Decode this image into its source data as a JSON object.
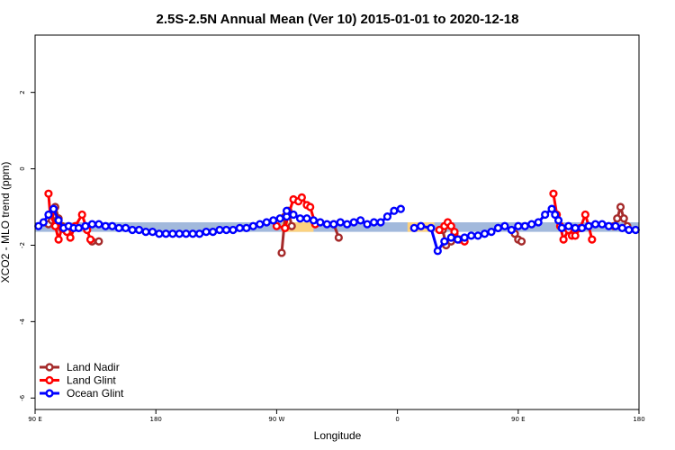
{
  "chart_data": {
    "type": "line",
    "title": "2.5S-2.5N Annual Mean (Ver 10)   2015-01-01 to 2020-12-18",
    "xlabel": "Longitude",
    "ylabel": "XCO2 - MLO trend (ppm)",
    "xlim": [
      90,
      450
    ],
    "ylim": [
      -6.3,
      3.5
    ],
    "x_ticks": [
      {
        "value": 90,
        "label": "90 E"
      },
      {
        "value": 162,
        "label": "180"
      },
      {
        "value": 234,
        "label": "90 W"
      },
      {
        "value": 306,
        "label": "0"
      },
      {
        "value": 378,
        "label": "90 E"
      },
      {
        "value": 450,
        "label": "180"
      }
    ],
    "y_ticks": [
      {
        "value": 2,
        "label": "2"
      },
      {
        "value": 0,
        "label": "0"
      },
      {
        "value": -2,
        "label": "-2"
      },
      {
        "value": -4,
        "label": "-4"
      },
      {
        "value": -6,
        "label": "-6"
      }
    ],
    "legend_position": "bottom-left",
    "bands": [
      {
        "name": "ocean-band",
        "color": "#a2b9dc",
        "x_start": 90,
        "x_end": 450,
        "y_low": -1.65,
        "y_high": -1.4
      },
      {
        "name": "land-band",
        "color": "#fcd27e",
        "x_start": 237,
        "x_end": 256,
        "y_low": -1.65,
        "y_high": -1.4
      },
      {
        "name": "land-band",
        "color": "#fcd27e",
        "x_start": 312,
        "x_end": 328,
        "y_low": -1.65,
        "y_high": -1.4
      }
    ],
    "series": [
      {
        "name": "Land Nadir",
        "color": "#a52a2a",
        "segments": [
          {
            "x": [
              98,
              100,
              102,
              104,
              106,
              108
            ],
            "y": [
              -1.45,
              -1.35,
              -1.0,
              -1.3,
              -1.5,
              -1.6
            ]
          },
          {
            "x": [
              124,
              128
            ],
            "y": [
              -1.9,
              -1.9
            ]
          },
          {
            "x": [
              237,
              239,
              241,
              243
            ],
            "y": [
              -2.2,
              -1.25,
              -1.1,
              -1.5
            ]
          },
          {
            "x": [
              268,
              271
            ],
            "y": [
              -1.45,
              -1.8
            ]
          },
          {
            "x": [
              333,
              335,
              338,
              340
            ],
            "y": [
              -1.6,
              -2.0,
              -1.9,
              -1.7
            ]
          },
          {
            "x": [
              435,
              437,
              439,
              441,
              443
            ],
            "y": [
              -1.5,
              -1.3,
              -1.0,
              -1.3,
              -1.5
            ]
          },
          {
            "x": [
              376,
              378,
              380
            ],
            "y": [
              -1.7,
              -1.85,
              -1.9
            ]
          }
        ]
      },
      {
        "name": "Land Glint",
        "color": "#ff0000",
        "segments": [
          {
            "x": [
              98,
              99,
              102,
              104,
              106,
              109,
              111,
              114,
              118,
              121,
              123
            ],
            "y": [
              -0.65,
              -1.2,
              -1.5,
              -1.85,
              -1.55,
              -1.65,
              -1.8,
              -1.5,
              -1.2,
              -1.6,
              -1.85
            ]
          },
          {
            "x": [
              234,
              239,
              241,
              244,
              247,
              249,
              252,
              254,
              257
            ],
            "y": [
              -1.5,
              -1.55,
              -1.2,
              -0.8,
              -0.85,
              -0.75,
              -0.95,
              -1.0,
              -1.45
            ]
          },
          {
            "x": [
              331,
              334,
              336,
              338,
              340,
              343,
              346
            ],
            "y": [
              -1.6,
              -1.5,
              -1.4,
              -1.5,
              -1.65,
              -1.85,
              -1.9
            ]
          },
          {
            "x": [
              399,
              401,
              403,
              405,
              408,
              410,
              412,
              415,
              418,
              420,
              422
            ],
            "y": [
              -0.65,
              -1.2,
              -1.5,
              -1.85,
              -1.6,
              -1.75,
              -1.75,
              -1.55,
              -1.2,
              -1.5,
              -1.85
            ]
          }
        ]
      },
      {
        "name": "Ocean Glint",
        "color": "#0000ff",
        "segments": [
          {
            "x": [
              92,
              95,
              98,
              101,
              104,
              107,
              110,
              113,
              116,
              120,
              124,
              128,
              132,
              136,
              140,
              144,
              148,
              152,
              156,
              160,
              164,
              168,
              172,
              176,
              180,
              184,
              188,
              192,
              196,
              200,
              204,
              208,
              212,
              216,
              220,
              224,
              228,
              232,
              236,
              240
            ],
            "y": [
              -1.5,
              -1.4,
              -1.2,
              -1.05,
              -1.35,
              -1.55,
              -1.5,
              -1.55,
              -1.55,
              -1.5,
              -1.45,
              -1.45,
              -1.5,
              -1.5,
              -1.55,
              -1.55,
              -1.6,
              -1.6,
              -1.65,
              -1.65,
              -1.7,
              -1.7,
              -1.7,
              -1.7,
              -1.7,
              -1.7,
              -1.7,
              -1.65,
              -1.65,
              -1.6,
              -1.6,
              -1.6,
              -1.55,
              -1.55,
              -1.5,
              -1.45,
              -1.4,
              -1.35,
              -1.3,
              -1.25
            ]
          },
          {
            "x": [
              240,
              244,
              248,
              252,
              256,
              260,
              264,
              268,
              272,
              276,
              280,
              284,
              288,
              292,
              296,
              300,
              304,
              308
            ],
            "y": [
              -1.1,
              -1.2,
              -1.3,
              -1.3,
              -1.35,
              -1.4,
              -1.45,
              -1.45,
              -1.4,
              -1.45,
              -1.4,
              -1.35,
              -1.45,
              -1.4,
              -1.4,
              -1.25,
              -1.1,
              -1.05
            ]
          },
          {
            "x": [
              316,
              320,
              326,
              330,
              334,
              338,
              342,
              346,
              350,
              354,
              358,
              362,
              366
            ],
            "y": [
              -1.55,
              -1.5,
              -1.55,
              -2.15,
              -1.9,
              -1.8,
              -1.85,
              -1.8,
              -1.75,
              -1.75,
              -1.7,
              -1.65,
              -1.55
            ]
          },
          {
            "x": [
              366,
              370,
              374,
              378,
              382,
              386,
              390,
              394,
              398,
              400,
              402,
              404,
              408,
              412,
              416,
              420,
              424,
              428,
              432,
              436,
              440,
              444,
              448
            ],
            "y": [
              -1.55,
              -1.5,
              -1.6,
              -1.5,
              -1.5,
              -1.45,
              -1.4,
              -1.2,
              -1.05,
              -1.2,
              -1.35,
              -1.55,
              -1.5,
              -1.55,
              -1.55,
              -1.5,
              -1.45,
              -1.45,
              -1.5,
              -1.5,
              -1.55,
              -1.6,
              -1.6
            ]
          }
        ]
      }
    ]
  }
}
